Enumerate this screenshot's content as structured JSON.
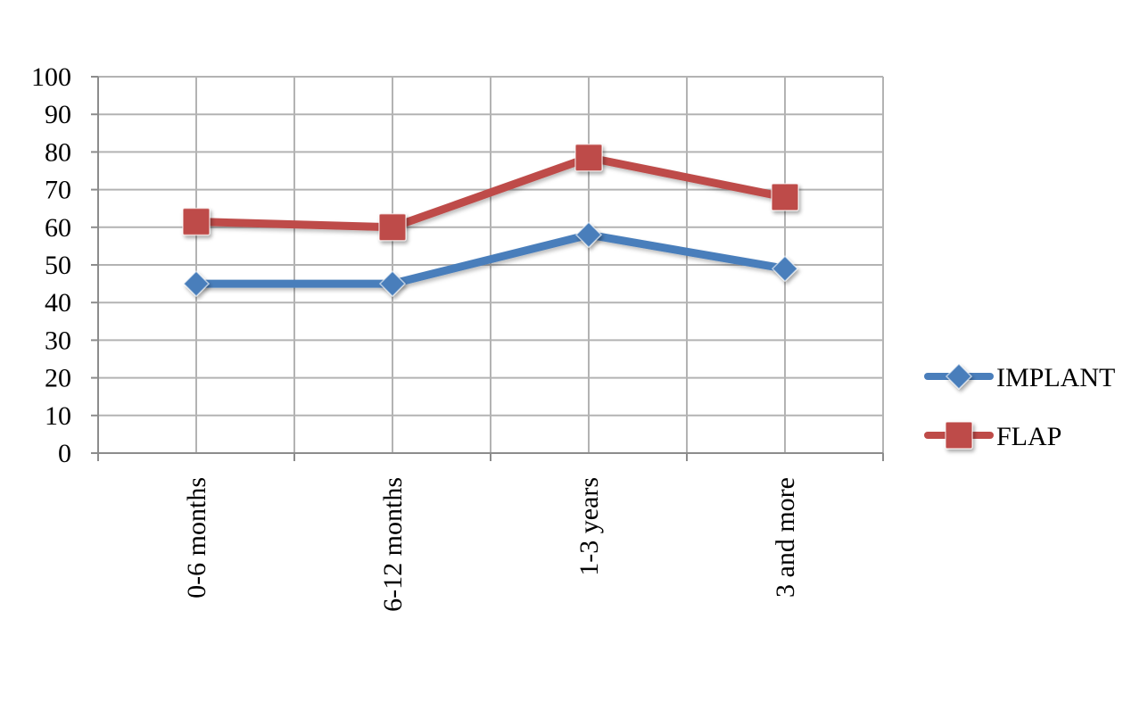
{
  "chart_data": {
    "type": "line",
    "categories": [
      "0-6 months",
      "6-12 months",
      "1-3 years",
      "3 and more"
    ],
    "series": [
      {
        "name": "IMPLANT",
        "values": [
          45,
          45,
          58,
          49
        ],
        "color": "#4a7ebb",
        "marker": "diamond"
      },
      {
        "name": "FLAP",
        "values": [
          61.5,
          60,
          78.5,
          68
        ],
        "color": "#be4b48",
        "marker": "square"
      }
    ],
    "title": "",
    "xlabel": "",
    "ylabel": "",
    "ylim": [
      0,
      100
    ],
    "yticks": [
      "0",
      "10",
      "20",
      "30",
      "40",
      "50",
      "60",
      "70",
      "80",
      "90",
      "100"
    ],
    "grid": true,
    "legend": "right"
  }
}
